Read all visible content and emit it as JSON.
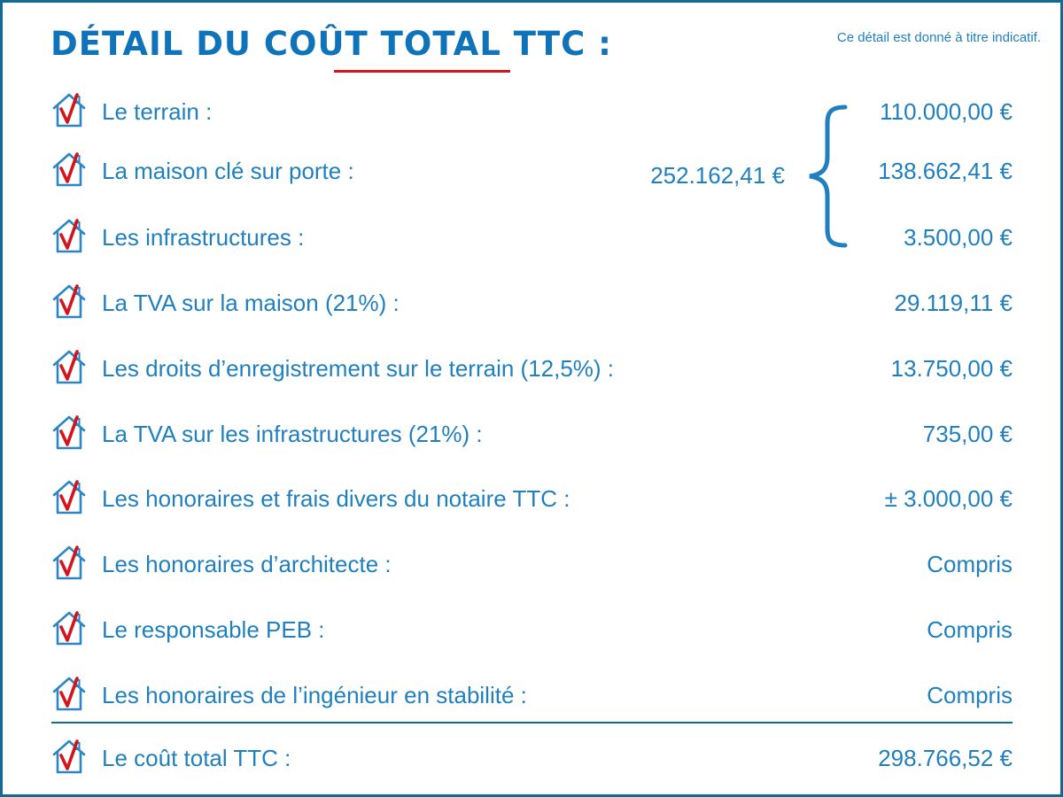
{
  "header": {
    "title": "DÉTAIL DU COÛT TOTAL TTC :",
    "note": "Ce détail est donné à titre indicatif."
  },
  "icon_name": "house-check-icon",
  "colors": {
    "text": "#1f7fbf",
    "title": "#0e73b8",
    "accent": "#d4131b",
    "frame": "#146a96"
  },
  "group": {
    "sum": "252.162,41 €"
  },
  "rows": [
    {
      "label": "Le terrain :",
      "value": "110.000,00 €"
    },
    {
      "label": "La maison clé sur porte :",
      "value": "138.662,41 €"
    },
    {
      "label": "Les infrastructures :",
      "value": "3.500,00 €"
    },
    {
      "label": "La TVA sur la maison (21%) :",
      "value": "29.119,11 €"
    },
    {
      "label": "Les droits d’enregistrement sur le terrain (12,5%) :",
      "value": "13.750,00 €"
    },
    {
      "label": "La TVA sur les infrastructures (21%) :",
      "value": "735,00 €"
    },
    {
      "label": "Les honoraires et frais divers du notaire TTC :",
      "value": "± 3.000,00 €"
    },
    {
      "label": "Les honoraires d’architecte :",
      "value": "Compris"
    },
    {
      "label": "Le responsable PEB :",
      "value": "Compris"
    },
    {
      "label": "Les honoraires de l’ingénieur en stabilité :",
      "value": "Compris"
    }
  ],
  "total": {
    "label": "Le coût total TTC :",
    "value": "298.766,52 €"
  }
}
